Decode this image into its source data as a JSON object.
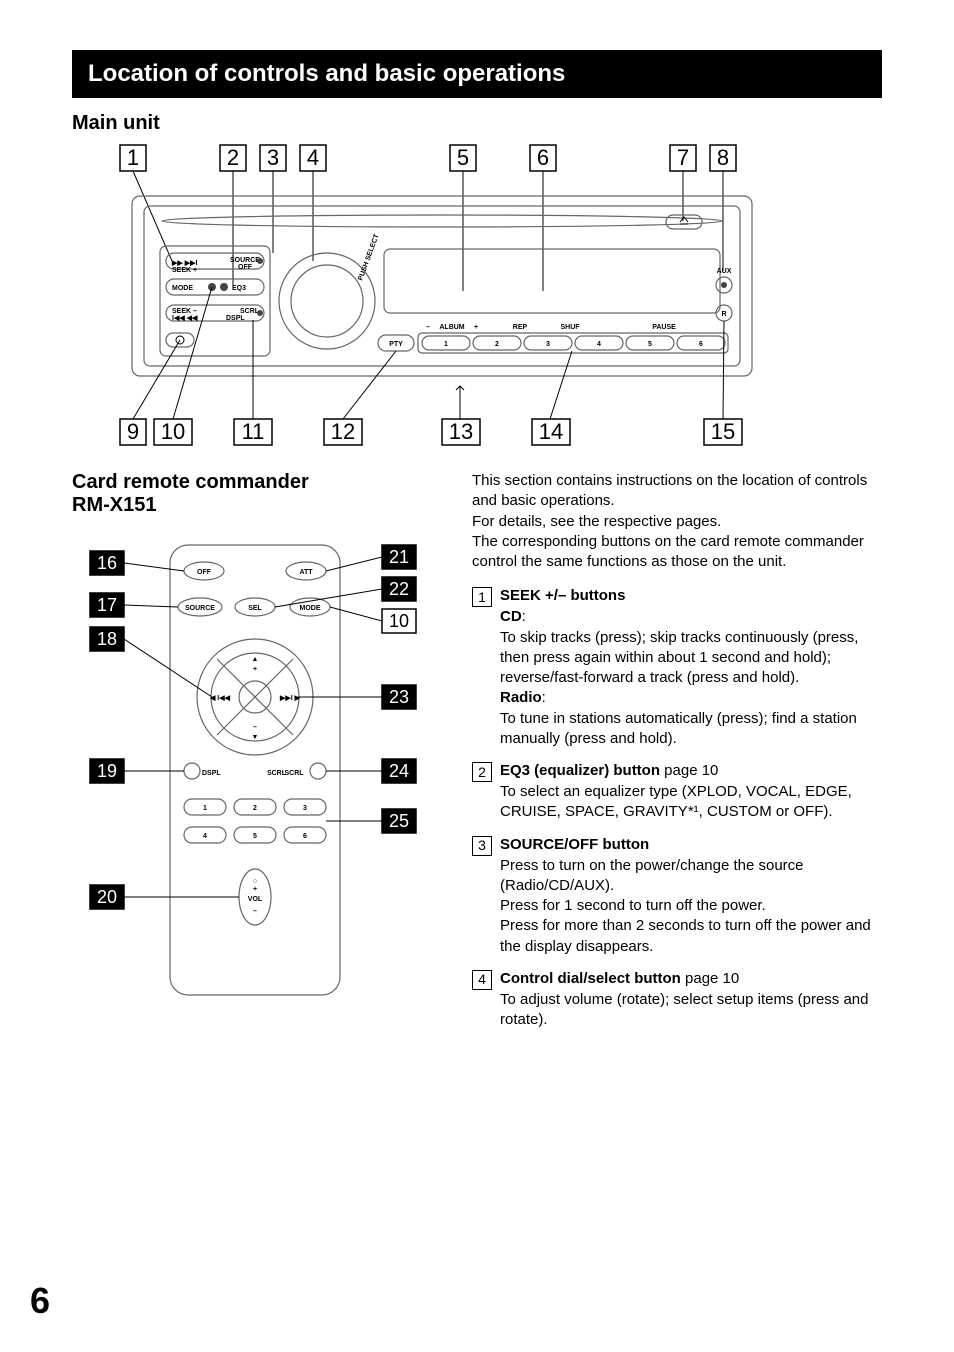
{
  "header": {
    "title": "Location of controls and basic operations"
  },
  "main_unit": {
    "title": "Main unit",
    "callouts_top": [
      "1",
      "2",
      "3",
      "4",
      "5",
      "6",
      "7",
      "8"
    ],
    "callouts_bottom": [
      "9",
      "10",
      "11",
      "12",
      "13",
      "14",
      "15"
    ],
    "device_labels": {
      "seek_plus": "SEEK +",
      "seek_minus": "SEEK –",
      "mode": "MODE",
      "eq3": "EQ3",
      "source": "SOURCE",
      "off": "OFF",
      "dspl": "DSPL",
      "scrl": "SCRL",
      "push_select": "PUSH SELECT",
      "pty": "PTY",
      "album_minus": "–",
      "album": "ALBUM",
      "album_plus": "+",
      "rep": "REP",
      "shuf": "SHUF",
      "pause": "PAUSE",
      "numbers": [
        "1",
        "2",
        "3",
        "4",
        "5",
        "6"
      ],
      "aux": "AUX"
    }
  },
  "remote": {
    "title_1": "Card remote commander",
    "title_2": "RM-X151",
    "callouts_left": [
      "16",
      "17",
      "18",
      "19",
      "20"
    ],
    "callouts_right": [
      "21",
      "22",
      "10",
      "23",
      "24",
      "25"
    ],
    "labels": {
      "off": "OFF",
      "att": "ATT",
      "source": "SOURCE",
      "sel": "SEL",
      "mode": "MODE",
      "dspl": "DSPL",
      "scrl": "SCRL",
      "vol": "VOL",
      "numbers": [
        "1",
        "2",
        "3",
        "4",
        "5",
        "6"
      ]
    }
  },
  "text": {
    "intro_1": "This section contains instructions on the location of controls and basic operations.",
    "intro_2": "For details, see the respective pages.",
    "intro_3": "The corresponding buttons on the card remote commander control the same functions as those on the unit."
  },
  "items": [
    {
      "num": "1",
      "title": "SEEK +/– buttons",
      "page": "",
      "body": [
        {
          "bold": "CD",
          "text": ":"
        },
        {
          "text": "To skip tracks (press); skip tracks continuously (press, then press again within about 1 second and hold); reverse/fast-forward a track (press and hold)."
        },
        {
          "bold": "Radio",
          "text": ":"
        },
        {
          "text": "To tune in stations automatically (press); find a station manually (press and hold)."
        }
      ]
    },
    {
      "num": "2",
      "title": "EQ3 (equalizer) button",
      "page": "page 10",
      "body": [
        {
          "text": "To select an equalizer type (XPLOD, VOCAL, EDGE, CRUISE, SPACE, GRAVITY*¹, CUSTOM or OFF)."
        }
      ]
    },
    {
      "num": "3",
      "title": "SOURCE/OFF button",
      "page": "",
      "body": [
        {
          "text": "Press to turn on the power/change the source (Radio/CD/AUX)."
        },
        {
          "text": "Press for 1 second to turn off the power."
        },
        {
          "text": "Press for more than 2 seconds to turn off the power and the display disappears."
        }
      ]
    },
    {
      "num": "4",
      "title": "Control dial/select button",
      "page": "page 10",
      "body": [
        {
          "text": "To adjust volume (rotate); select setup items (press and rotate)."
        }
      ]
    }
  ],
  "page_number": "6"
}
